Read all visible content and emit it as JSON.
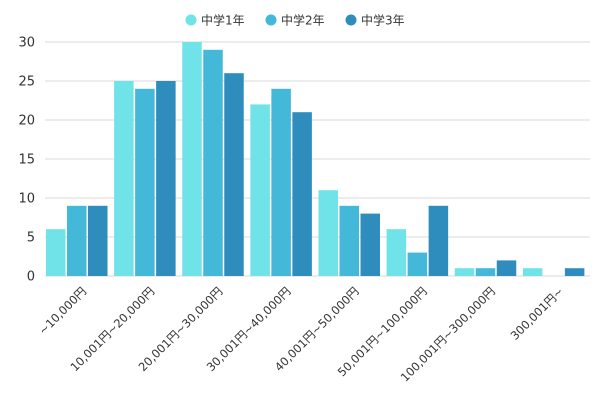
{
  "chart_data": {
    "type": "bar",
    "title": "",
    "xlabel": "",
    "ylabel": "",
    "ylim": [
      0,
      30
    ],
    "yticks": [
      0,
      5,
      10,
      15,
      20,
      25,
      30
    ],
    "grid": true,
    "legend_position": "top-center",
    "categories": [
      "~10,000円",
      "10,001円~20,000円",
      "20,001円~30,000円",
      "30,001円~40,000円",
      "40,001円~50,000円",
      "50,001円~100,000円",
      "100,001円~300,000円",
      "300,001円~"
    ],
    "series": [
      {
        "name": "中学1年",
        "color": "#6fe3e8",
        "values": [
          6,
          25,
          30,
          22,
          11,
          6,
          1,
          1
        ]
      },
      {
        "name": "中学2年",
        "color": "#43b8d8",
        "values": [
          9,
          24,
          29,
          24,
          9,
          3,
          1,
          0
        ]
      },
      {
        "name": "中学3年",
        "color": "#2e8dbd",
        "values": [
          9,
          25,
          26,
          21,
          8,
          9,
          2,
          1
        ]
      }
    ]
  }
}
